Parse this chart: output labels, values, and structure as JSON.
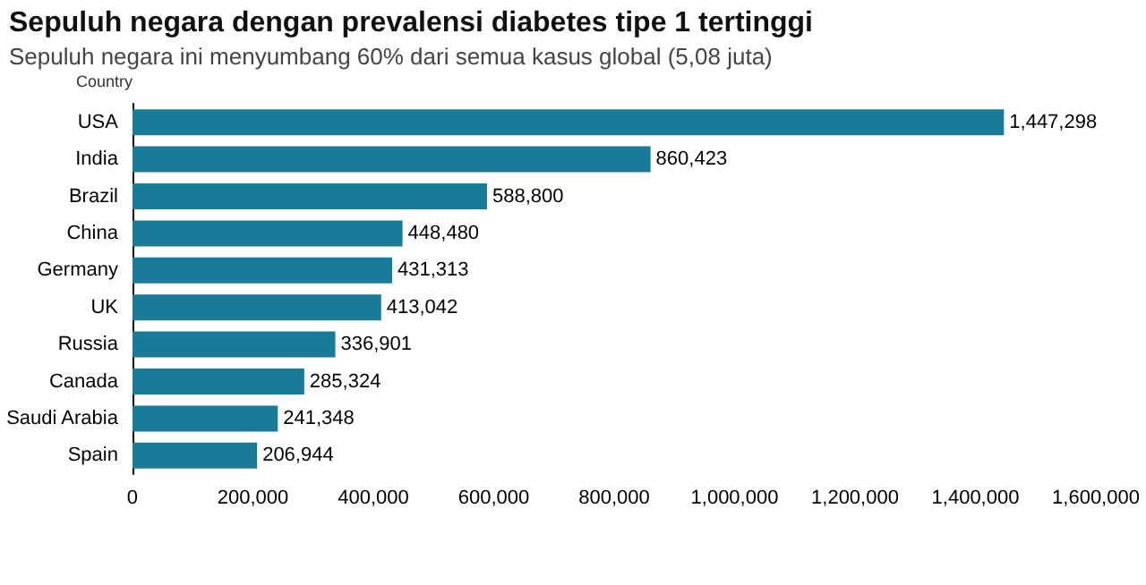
{
  "chart_data": {
    "type": "bar",
    "orientation": "horizontal",
    "title": "Sepuluh negara dengan prevalensi diabetes tipe 1 tertinggi",
    "subtitle": "Sepuluh negara ini menyumbang 60% dari semua kasus global (5,08 juta)",
    "ylabel": "Country",
    "categories": [
      "USA",
      "India",
      "Brazil",
      "China",
      "Germany",
      "UK",
      "Russia",
      "Canada",
      "Saudi Arabia",
      "Spain"
    ],
    "values": [
      1447298,
      860423,
      588800,
      448480,
      431313,
      413042,
      336901,
      285324,
      241348,
      206944
    ],
    "value_labels": [
      "1,447,298",
      "860,423",
      "588,800",
      "448,480",
      "431,313",
      "413,042",
      "336,901",
      "285,324",
      "241,348",
      "206,944"
    ],
    "color": "#1a7b98",
    "grid": false,
    "xlim": [
      0,
      1600000
    ],
    "xticks": [
      0,
      {
        "value": 200000,
        "label": "200,000"
      },
      {
        "value": 400000,
        "label": "400,000"
      },
      {
        "value": 600000,
        "label": "600,000"
      },
      {
        "value": 800000,
        "label": "800,000"
      },
      {
        "value": 1000000,
        "label": "1,000,000"
      },
      {
        "value": 1200000,
        "label": "1,200,000"
      },
      {
        "value": 1400000,
        "label": "1,400,000"
      },
      {
        "value": 1600000,
        "label": "1,600,000"
      }
    ]
  }
}
